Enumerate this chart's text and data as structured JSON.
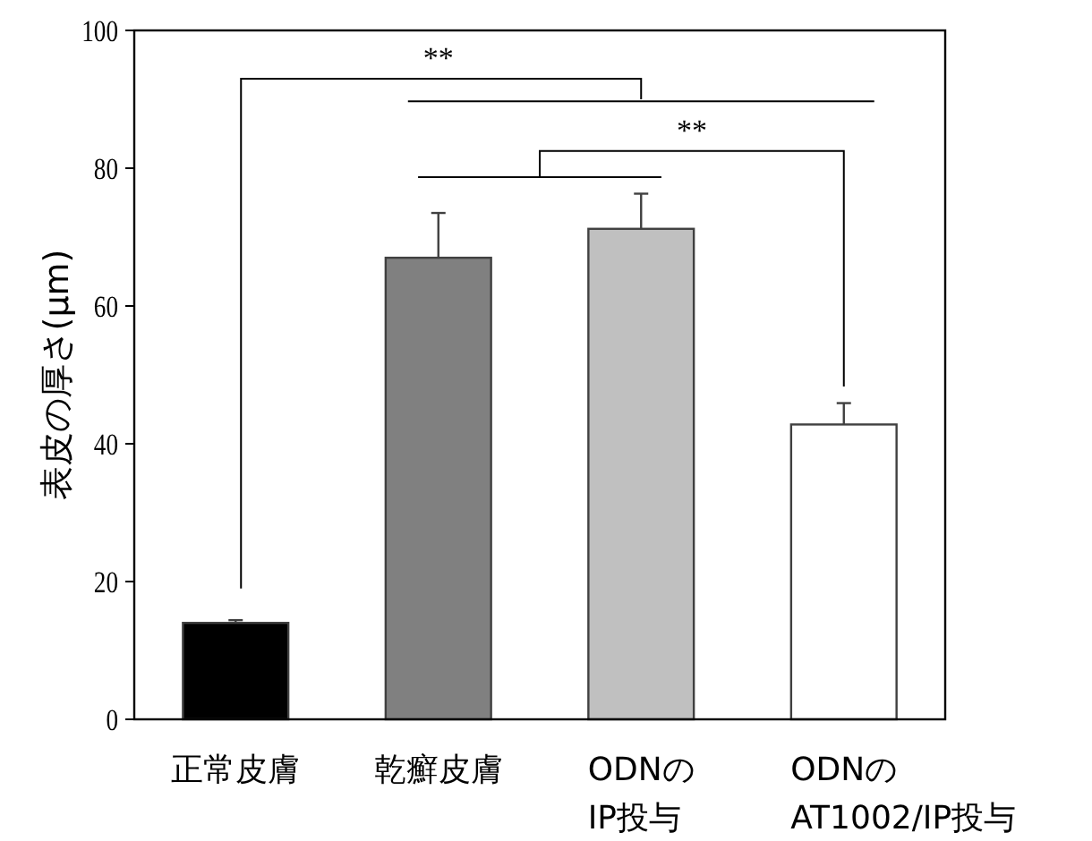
{
  "chart_data": {
    "type": "bar",
    "ylabel": "表皮の厚さ(μm)",
    "categories": [
      "正常皮膚",
      "乾癬皮膚",
      "ODNの\nIP投与",
      "ODNの\nAT1002/IP投与"
    ],
    "values": [
      14.0,
      67.0,
      71.2,
      42.8
    ],
    "colors": [
      "#000000",
      "#808080",
      "#c0c0c0",
      "#ffffff"
    ],
    "errors": [
      [
        14.0,
        14.4
      ],
      [
        67.0,
        73.5
      ],
      [
        71.2,
        76.3
      ],
      [
        42.8,
        45.9
      ]
    ],
    "ylim": [
      0,
      100
    ],
    "yticks": [
      0,
      20,
      40,
      60,
      80,
      100
    ],
    "annotations": [
      "**",
      "**"
    ]
  }
}
